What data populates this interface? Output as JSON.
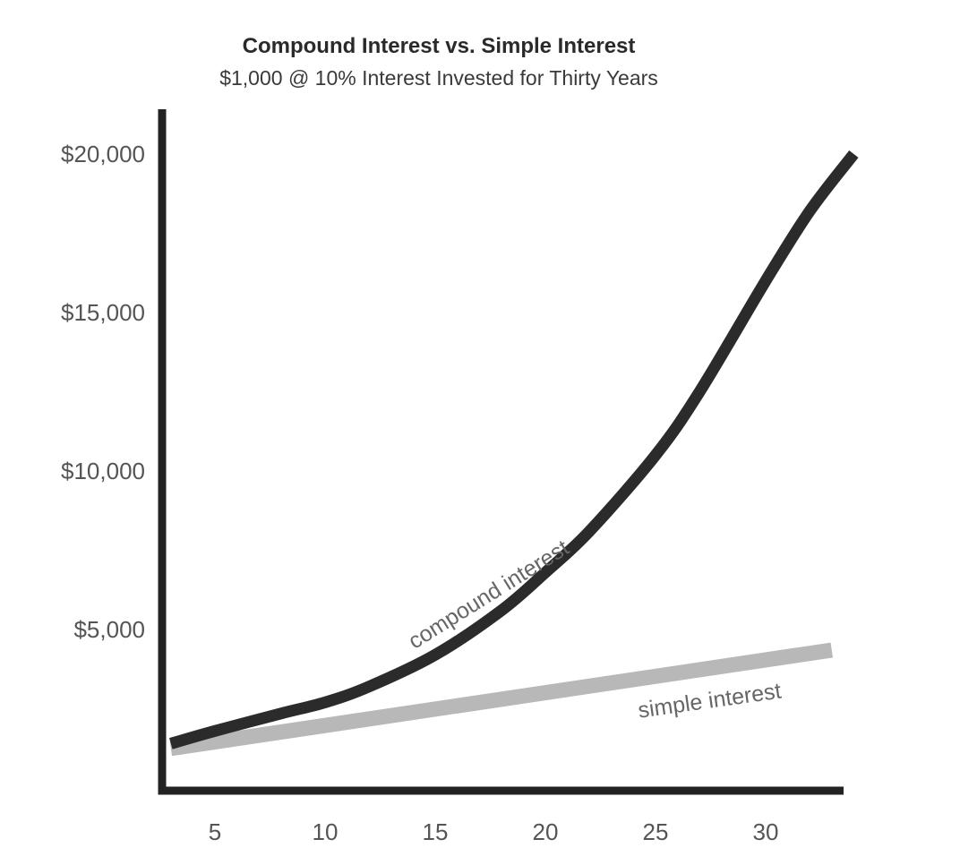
{
  "chart_data": {
    "type": "line",
    "title": "Compound Interest vs. Simple Interest",
    "subtitle": "$1,000 @ 10% Interest Invested for Thirty Years",
    "xlabel": "",
    "ylabel": "",
    "xlim": [
      2.5,
      35
    ],
    "ylim": [
      0,
      20500
    ],
    "x_ticks": [
      5,
      10,
      15,
      20,
      25,
      30
    ],
    "x_tick_labels": [
      "5",
      "10",
      "15",
      "20",
      "25",
      "30"
    ],
    "y_ticks": [
      5000,
      10000,
      15000,
      20000
    ],
    "y_tick_labels": [
      "$5,000",
      "$10,000",
      "$15,000",
      "$20,000"
    ],
    "grid": false,
    "legend": "none",
    "series": [
      {
        "name": "compound interest",
        "color": "#2b2b2b",
        "x": [
          3,
          5,
          8,
          10,
          12,
          15,
          18,
          20,
          22,
          25,
          27,
          30,
          32,
          34
        ],
        "values": [
          1400,
          1800,
          2350,
          2700,
          3200,
          4200,
          5600,
          6800,
          8100,
          10500,
          12500,
          16000,
          18200,
          20000
        ]
      },
      {
        "name": "simple interest",
        "color": "#b8b8b8",
        "x": [
          3,
          33
        ],
        "values": [
          1250,
          4350
        ]
      }
    ]
  }
}
